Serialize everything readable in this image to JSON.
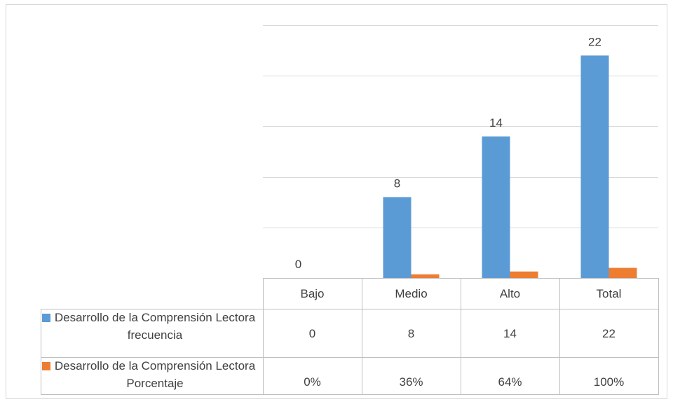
{
  "chart_data": {
    "type": "bar",
    "categories": [
      "Bajo",
      "Medio",
      "Alto",
      "Total"
    ],
    "series": [
      {
        "name": "Desarrollo de la Comprensión Lectora frecuencia",
        "values": [
          0,
          8,
          14,
          22
        ],
        "data_labels": [
          "0",
          "8",
          "14",
          "22"
        ],
        "table_values": [
          "0",
          "8",
          "14",
          "22"
        ],
        "color": "#5b9bd5"
      },
      {
        "name": "Desarrollo de la Comprensión Lectora Porcentaje",
        "values": [
          0,
          0.36,
          0.64,
          1
        ],
        "table_values": [
          "0%",
          "36%",
          "64%",
          "100%"
        ],
        "color": "#ed7d31"
      }
    ],
    "title": "",
    "xlabel": "",
    "ylabel": "",
    "ylim": [
      0,
      25
    ],
    "y_gridline_step": 5,
    "y_tick_labels_shown": false,
    "grid": true,
    "legend": "data-table",
    "data_table": true
  }
}
